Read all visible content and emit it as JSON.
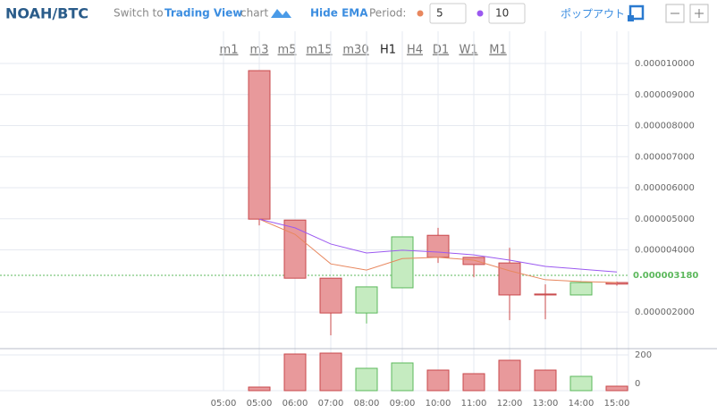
{
  "toolbar": {
    "pair": "NOAH/BTC",
    "switch_prefix": "Switch to",
    "switch_link": "Trading View",
    "switch_suffix": "chart",
    "hide_ema": "Hide EMA",
    "period_label": "Period:",
    "popout": "ポップアウト"
  },
  "timeframes": {
    "items": [
      "m1",
      "m3",
      "m5",
      "m15",
      "m30",
      "H1",
      "H4",
      "D1",
      "W1",
      "M1"
    ],
    "active": "H1"
  },
  "chart_data": {
    "type": "candlestick",
    "title": "NOAH/BTC",
    "categories": [
      "05:00",
      "05:00",
      "06:00",
      "07:00",
      "08:00",
      "09:00",
      "10:00",
      "11:00",
      "12:00",
      "13:00",
      "14:00",
      "15:00"
    ],
    "open": [
      null,
      9.77e-06,
      4.96e-06,
      3.09e-06,
      1.97e-06,
      2.78e-06,
      4.47e-06,
      3.76e-06,
      3.58e-06,
      2.58e-06,
      2.55e-06,
      2.95e-06
    ],
    "high": [
      null,
      9.77e-06,
      4.96e-06,
      3.09e-06,
      2.81e-06,
      4.42e-06,
      4.71e-06,
      3.76e-06,
      4.07e-06,
      2.89e-06,
      2.95e-06,
      2.98e-06
    ],
    "low": [
      null,
      4.79e-06,
      3.09e-06,
      1.25e-06,
      1.63e-06,
      2.78e-06,
      3.58e-06,
      3.12e-06,
      1.74e-06,
      1.77e-06,
      2.55e-06,
      2.85e-06
    ],
    "close": [
      null,
      4.99e-06,
      3.09e-06,
      1.97e-06,
      2.81e-06,
      4.42e-06,
      3.76e-06,
      3.53e-06,
      2.55e-06,
      2.55e-06,
      2.95e-06,
      2.9e-06
    ],
    "volume": [
      null,
      20,
      205,
      210,
      125,
      155,
      115,
      95,
      170,
      115,
      80,
      25
    ],
    "up_color": "#5cb85c",
    "up_fill": "#c5ebc0",
    "down_color": "#c9484b",
    "down_fill": "#e8999b",
    "ema": [
      {
        "name": "5",
        "color": "#e8875e",
        "values": [
          null,
          4.99e-06,
          4.5e-06,
          3.55e-06,
          3.35e-06,
          3.72e-06,
          3.76e-06,
          3.67e-06,
          3.33e-06,
          3.04e-06,
          2.98e-06,
          2.95e-06
        ]
      },
      {
        "name": "10",
        "color": "#9b59f0",
        "values": [
          null,
          4.99e-06,
          4.71e-06,
          4.19e-06,
          3.9e-06,
          3.99e-06,
          3.93e-06,
          3.84e-06,
          3.67e-06,
          3.47e-06,
          3.38e-06,
          3.29e-06
        ]
      }
    ],
    "ylim": [
      8.8e-07,
      1.1036e-05
    ],
    "yticks": [
      {
        "value": 2e-06,
        "label": "0.000002000"
      },
      {
        "value": 4e-06,
        "label": "0.000004000"
      },
      {
        "value": 5e-06,
        "label": "0.000005000"
      },
      {
        "value": 6e-06,
        "label": "0.000006000"
      },
      {
        "value": 7e-06,
        "label": "0.000007000"
      },
      {
        "value": 8e-06,
        "label": "0.000008000"
      },
      {
        "value": 9e-06,
        "label": "0.000009000"
      },
      {
        "value": 1e-05,
        "label": "0.000010000"
      }
    ],
    "last_price": {
      "value": 3.18e-06,
      "label": "0.000003180"
    },
    "volume_ylim": [
      0,
      235
    ],
    "volume_yticks": [
      0,
      200
    ],
    "grid": true
  }
}
